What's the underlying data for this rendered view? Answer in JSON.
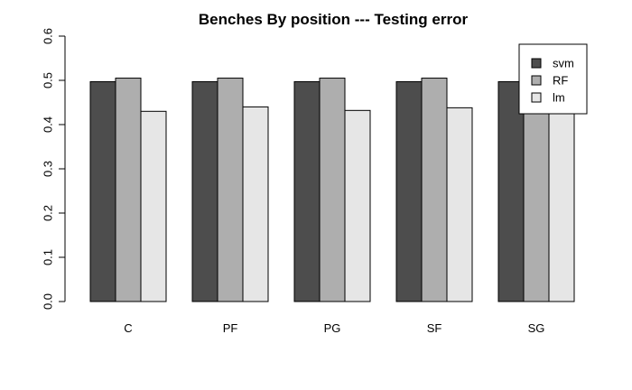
{
  "chart_data": {
    "type": "bar",
    "title": "Benches By position --- Testing error",
    "xlabel": "",
    "ylabel": "",
    "categories": [
      "C",
      "PF",
      "PG",
      "SF",
      "SG"
    ],
    "series": [
      {
        "name": "svm",
        "color": "#4d4d4d",
        "values": [
          0.497,
          0.497,
          0.497,
          0.497,
          0.497
        ]
      },
      {
        "name": "RF",
        "color": "#aeaeae",
        "values": [
          0.505,
          0.505,
          0.505,
          0.505,
          0.505
        ]
      },
      {
        "name": "lm",
        "color": "#e6e6e6",
        "values": [
          0.43,
          0.44,
          0.432,
          0.438,
          0.452
        ]
      }
    ],
    "ylim": [
      0,
      0.6
    ],
    "yticks": [
      "0.0",
      "0.1",
      "0.2",
      "0.3",
      "0.4",
      "0.5",
      "0.6"
    ],
    "grid": false,
    "legend_position": "top-right"
  }
}
